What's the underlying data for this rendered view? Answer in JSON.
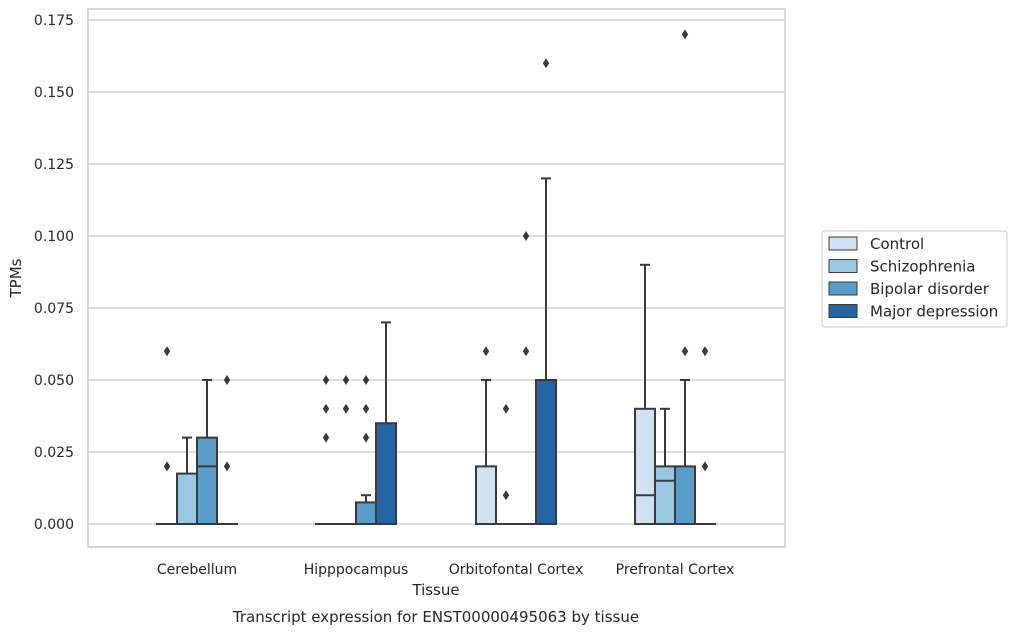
{
  "chart_data": {
    "type": "box",
    "title": "Transcript expression for ENST00000495063 by tissue",
    "xlabel": "Tissue",
    "ylabel": "TPMs",
    "ylim": [
      -0.0085,
      0.1785
    ],
    "yticks": [
      "0.000",
      "0.025",
      "0.050",
      "0.075",
      "0.100",
      "0.125",
      "0.150",
      "0.175"
    ],
    "ytick_values": [
      0,
      0.025,
      0.05,
      0.075,
      0.1,
      0.125,
      0.15,
      0.175
    ],
    "grid": true,
    "legend_position": "right",
    "categories": [
      "Cerebellum",
      "Hipppocampus",
      "Orbitofontal Cortex",
      "Prefrontal Cortex"
    ],
    "series": [
      {
        "name": "Control",
        "color": "#d0e1f2",
        "boxes": [
          {
            "whisker_low": 0,
            "q1": 0,
            "median": 0,
            "q3": 0,
            "whisker_high": 0,
            "outliers": [
              0.02,
              0.06
            ]
          },
          {
            "whisker_low": 0,
            "q1": 0,
            "median": 0,
            "q3": 0,
            "whisker_high": 0,
            "outliers": [
              0.03,
              0.04,
              0.05
            ]
          },
          {
            "whisker_low": 0,
            "q1": 0,
            "median": 0,
            "q3": 0.02,
            "whisker_high": 0.05,
            "outliers": [
              0.06
            ]
          },
          {
            "whisker_low": 0,
            "q1": 0,
            "median": 0.01,
            "q3": 0.04,
            "whisker_high": 0.09,
            "outliers": []
          }
        ]
      },
      {
        "name": "Schizophrenia",
        "color": "#9ac8e0",
        "boxes": [
          {
            "whisker_low": 0,
            "q1": 0,
            "median": 0,
            "q3": 0.0175,
            "whisker_high": 0.03,
            "outliers": []
          },
          {
            "whisker_low": 0,
            "q1": 0,
            "median": 0,
            "q3": 0,
            "whisker_high": 0,
            "outliers": [
              0.04,
              0.05
            ]
          },
          {
            "whisker_low": 0,
            "q1": 0,
            "median": 0,
            "q3": 0,
            "whisker_high": 0,
            "outliers": [
              0.01,
              0.04
            ]
          },
          {
            "whisker_low": 0,
            "q1": 0,
            "median": 0.015,
            "q3": 0.02,
            "whisker_high": 0.04,
            "outliers": []
          }
        ]
      },
      {
        "name": "Bipolar disorder",
        "color": "#5a9cc9",
        "boxes": [
          {
            "whisker_low": 0,
            "q1": 0,
            "median": 0.02,
            "q3": 0.03,
            "whisker_high": 0.05,
            "outliers": []
          },
          {
            "whisker_low": 0,
            "q1": 0,
            "median": 0,
            "q3": 0.0075,
            "whisker_high": 0.01,
            "outliers": [
              0.03,
              0.04,
              0.05
            ]
          },
          {
            "whisker_low": 0,
            "q1": 0,
            "median": 0,
            "q3": 0,
            "whisker_high": 0,
            "outliers": [
              0.06,
              0.1
            ]
          },
          {
            "whisker_low": 0,
            "q1": 0,
            "median": 0,
            "q3": 0.02,
            "whisker_high": 0.05,
            "outliers": [
              0.06,
              0.17
            ]
          }
        ]
      },
      {
        "name": "Major depression",
        "color": "#2565a3",
        "boxes": [
          {
            "whisker_low": 0,
            "q1": 0,
            "median": 0,
            "q3": 0,
            "whisker_high": 0,
            "outliers": [
              0.02,
              0.05
            ]
          },
          {
            "whisker_low": 0,
            "q1": 0,
            "median": 0,
            "q3": 0.035,
            "whisker_high": 0.07,
            "outliers": []
          },
          {
            "whisker_low": 0,
            "q1": 0,
            "median": 0,
            "q3": 0.05,
            "whisker_high": 0.12,
            "outliers": [
              0.16
            ]
          },
          {
            "whisker_low": 0,
            "q1": 0,
            "median": 0,
            "q3": 0,
            "whisker_high": 0,
            "outliers": [
              0.02,
              0.06
            ]
          }
        ]
      }
    ]
  },
  "colors": {
    "grid": "#cccccc",
    "frame": "#cccccc",
    "line": "#3a3a3a",
    "text": "#262626"
  }
}
